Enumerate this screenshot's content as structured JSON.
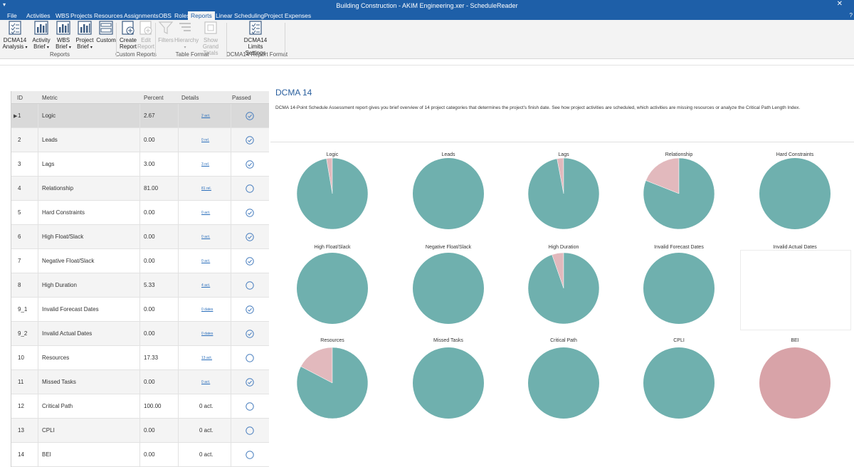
{
  "window": {
    "title": "Building Construction - AKIM Engineering.xer - ScheduleReader",
    "quick_access": "▾",
    "close_glyph": "✕",
    "help_glyph": "?"
  },
  "menu": {
    "tabs": [
      "File",
      "Activities",
      "WBS",
      "Projects",
      "Resources",
      "Assignments",
      "OBS",
      "Roles",
      "Reports",
      "Linear Scheduling",
      "Project Expenses"
    ],
    "active": "Reports"
  },
  "ribbon": {
    "buttons": [
      {
        "line1": "DCMA14",
        "line2": "Analysis",
        "arrow": "▾",
        "icon": "checklist-icon",
        "disabled": false
      },
      {
        "line1": "Activity",
        "line2": "Brief",
        "arrow": "▾",
        "icon": "bar-chart-icon",
        "disabled": false
      },
      {
        "line1": "WBS",
        "line2": "Brief",
        "arrow": "▾",
        "icon": "bar-chart-icon",
        "disabled": false
      },
      {
        "line1": "Project",
        "line2": "Brief",
        "arrow": "▾",
        "icon": "bar-chart-icon",
        "disabled": false
      },
      {
        "line1": "Custom",
        "line2": "",
        "arrow": "",
        "icon": "layout-icon",
        "disabled": false
      },
      {
        "line1": "Create",
        "line2": "Report",
        "arrow": "",
        "icon": "create-report-icon",
        "disabled": false
      },
      {
        "line1": "Edit",
        "line2": "Report",
        "arrow": "",
        "icon": "edit-report-icon",
        "disabled": true
      },
      {
        "line1": "Filters",
        "line2": "",
        "arrow": "",
        "icon": "filter-icon",
        "disabled": true
      },
      {
        "line1": "Hierarchy",
        "line2": "",
        "arrow": "▾",
        "icon": "hierarchy-icon",
        "disabled": true
      },
      {
        "line1": "Show Grand",
        "line2": "Totals",
        "arrow": "",
        "icon": "totals-icon",
        "disabled": true
      },
      {
        "line1": "DCMA14",
        "line2": "Limits Settings",
        "arrow": "",
        "icon": "checklist-icon",
        "disabled": false
      }
    ],
    "groups": [
      "Reports",
      "Custom Reports",
      "Table Format",
      "DCMA14 Report Format"
    ]
  },
  "table": {
    "headers": {
      "id": "ID",
      "metric": "Metric",
      "percent": "Percent",
      "details": "Details",
      "passed": "Passed"
    },
    "selected_marker": "▶",
    "rows": [
      {
        "id": "1",
        "metric": "Logic",
        "percent": "2.67",
        "details": "2 act.",
        "details_link": true,
        "passed": true
      },
      {
        "id": "2",
        "metric": "Leads",
        "percent": "0.00",
        "details": "0 rel.",
        "details_link": true,
        "passed": true
      },
      {
        "id": "3",
        "metric": "Lags",
        "percent": "3.00",
        "details": "3 rel.",
        "details_link": true,
        "passed": true
      },
      {
        "id": "4",
        "metric": "Relationship",
        "percent": "81.00",
        "details": "81 rel.",
        "details_link": true,
        "passed": false
      },
      {
        "id": "5",
        "metric": "Hard Constraints",
        "percent": "0.00",
        "details": "0 act.",
        "details_link": true,
        "passed": true
      },
      {
        "id": "6",
        "metric": "High Float/Slack",
        "percent": "0.00",
        "details": "0 act.",
        "details_link": true,
        "passed": true
      },
      {
        "id": "7",
        "metric": "Negative Float/Slack",
        "percent": "0.00",
        "details": "0 act.",
        "details_link": true,
        "passed": true
      },
      {
        "id": "8",
        "metric": "High Duration",
        "percent": "5.33",
        "details": "4 act.",
        "details_link": true,
        "passed": false
      },
      {
        "id": "9_1",
        "metric": "Invalid Forecast Dates",
        "percent": "0.00",
        "details": "0 dates",
        "details_link": true,
        "passed": true
      },
      {
        "id": "9_2",
        "metric": "Invalid Actual Dates",
        "percent": "0.00",
        "details": "0 dates",
        "details_link": true,
        "passed": true
      },
      {
        "id": "10",
        "metric": "Resources",
        "percent": "17.33",
        "details": "13 act.",
        "details_link": true,
        "passed": false
      },
      {
        "id": "11",
        "metric": "Missed Tasks",
        "percent": "0.00",
        "details": "0 act.",
        "details_link": true,
        "passed": true
      },
      {
        "id": "12",
        "metric": "Critical Path",
        "percent": "100.00",
        "details": "0 act.",
        "details_link": false,
        "passed": false
      },
      {
        "id": "13",
        "metric": "CPLI",
        "percent": "0.00",
        "details": "0 act.",
        "details_link": false,
        "passed": false
      },
      {
        "id": "14",
        "metric": "BEI",
        "percent": "0.00",
        "details": "0 act.",
        "details_link": false,
        "passed": false
      }
    ]
  },
  "report": {
    "title": "DCMA 14",
    "description": "DCMA 14-Point Schedule Assessment report gives you brief overview of 14 project categories that determines the project's finish date. See how project activities are scheduled, which activities are missing resources or analyze the Critical Path Length Index."
  },
  "colors": {
    "teal": "#6fb0ae",
    "pink": "#e2b9bd",
    "bei": "#d8a3a8",
    "accent": "#1e5fa8",
    "link": "#2a6ebb",
    "check": "#4a7fbf"
  },
  "chart_data": {
    "type": "pie",
    "charts": [
      {
        "label": "Logic",
        "values": {
          "fail": 2.67,
          "pass": 97.33
        }
      },
      {
        "label": "Leads",
        "values": {
          "fail": 0,
          "pass": 100
        }
      },
      {
        "label": "Lags",
        "values": {
          "fail": 3,
          "pass": 97
        }
      },
      {
        "label": "Relationship",
        "values": {
          "fail": 19,
          "pass": 81
        }
      },
      {
        "label": "Hard Constraints",
        "values": {
          "fail": 0,
          "pass": 100
        }
      },
      {
        "label": "High Float/Slack",
        "values": {
          "fail": 0,
          "pass": 100
        }
      },
      {
        "label": "Negative Float/Slack",
        "values": {
          "fail": 0,
          "pass": 100
        }
      },
      {
        "label": "High Duration",
        "values": {
          "fail": 5.33,
          "pass": 94.67
        }
      },
      {
        "label": "Invalid Forecast Dates",
        "values": {
          "fail": 0,
          "pass": 100
        }
      },
      {
        "label": "Invalid Actual Dates",
        "values": null
      },
      {
        "label": "Resources",
        "values": {
          "fail": 17.33,
          "pass": 82.67
        }
      },
      {
        "label": "Missed Tasks",
        "values": {
          "fail": 0,
          "pass": 100
        }
      },
      {
        "label": "Critical Path",
        "values": {
          "fail": 0,
          "pass": 100
        }
      },
      {
        "label": "CPLI",
        "values": {
          "fail": 0,
          "pass": 100
        }
      },
      {
        "label": "BEI",
        "values": {
          "fail": 100,
          "pass": 0
        }
      }
    ]
  }
}
